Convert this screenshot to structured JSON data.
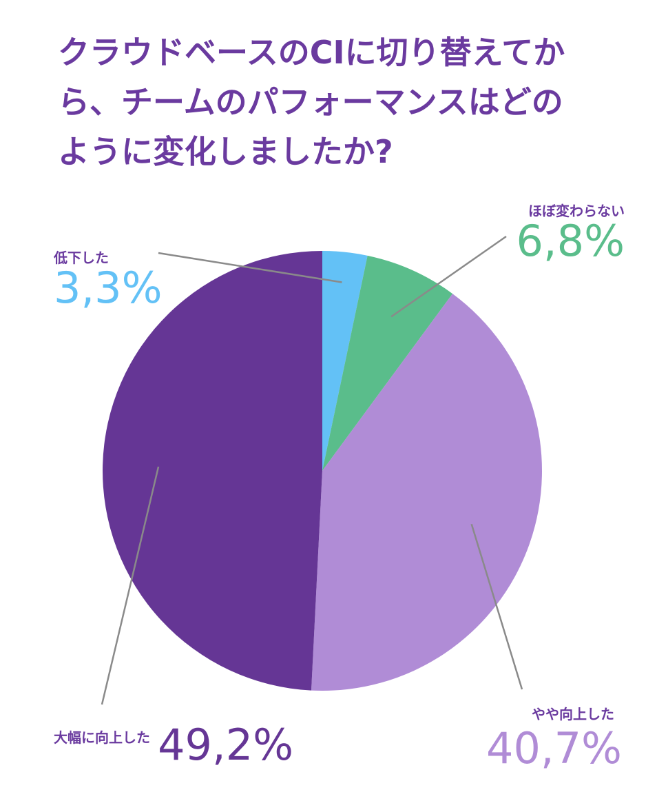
{
  "chart_data": {
    "type": "pie",
    "title_lines": [
      "クラウドベースのCIに切り替えてか",
      "ら、チームのパフォーマンスはどの",
      "ように変化しましたか?"
    ],
    "slices": [
      {
        "label": "低下した",
        "value": 3.3,
        "value_label": "3,3%",
        "color": "#63c1f6"
      },
      {
        "label": "ほぼ変わらない",
        "value": 6.8,
        "value_label": "6,8%",
        "color": "#5abd8b"
      },
      {
        "label": "やや向上した",
        "value": 40.7,
        "value_label": "40,7%",
        "color": "#b08cd6"
      },
      {
        "label": "大幅に向上した",
        "value": 49.2,
        "value_label": "49,2%",
        "color": "#653695"
      }
    ],
    "start_angle": "12 o'clock",
    "direction": "clockwise",
    "legend": "none",
    "label_color": "#6a3a9f",
    "leader_line_color": "#8a8a8a"
  }
}
